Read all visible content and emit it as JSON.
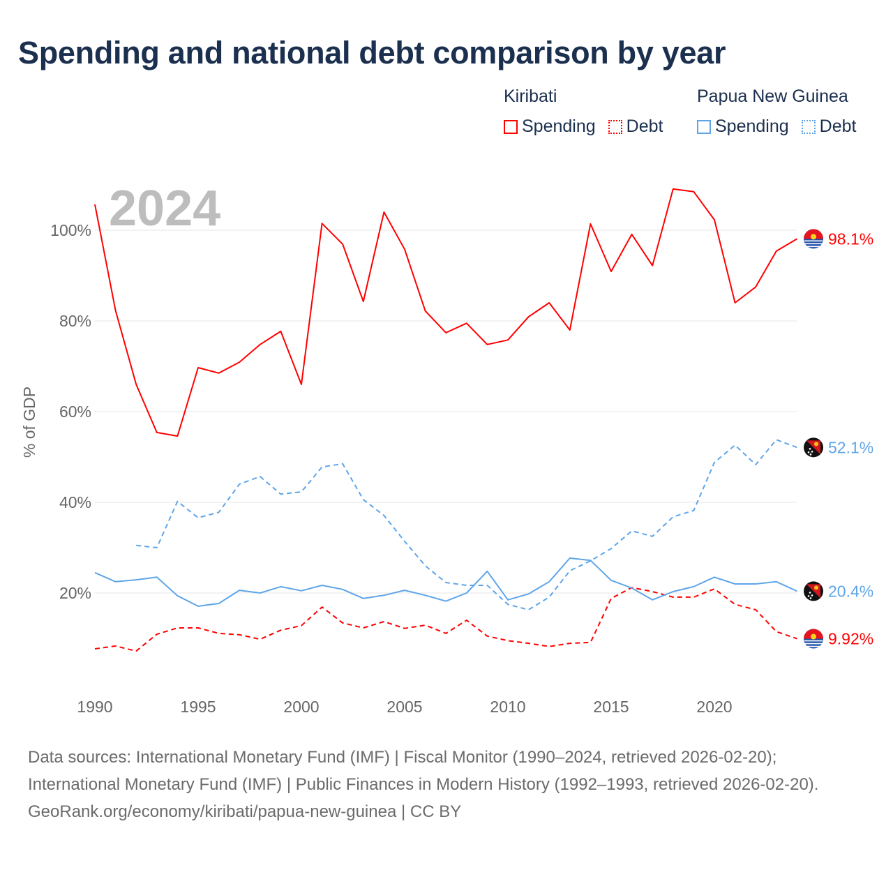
{
  "title": "Spending and national debt comparison by year",
  "year_watermark": "2024",
  "legend": {
    "groups": [
      {
        "country": "Kiribati",
        "items": [
          {
            "label": "Spending",
            "style": "solid"
          },
          {
            "label": "Debt",
            "style": "dotted"
          }
        ],
        "color": "#ff0000"
      },
      {
        "country": "Papua New Guinea",
        "items": [
          {
            "label": "Spending",
            "style": "solid"
          },
          {
            "label": "Debt",
            "style": "dotted"
          }
        ],
        "color": "#5ea5e8"
      }
    ]
  },
  "footer": {
    "sources": "Data sources: International Monetary Fund (IMF) | Fiscal Monitor (1990–2024, retrieved 2026-02-20); International Monetary Fund (IMF) | Public Finances in Modern History (1992–1993, retrieved 2026-02-20).",
    "credit": "GeoRank.org/economy/kiribati/papua-new-guinea | CC BY"
  },
  "chart_data": {
    "type": "line",
    "title": "Spending and national debt comparison by year",
    "xlabel": "",
    "ylabel": "% of GDP",
    "xlim": [
      1990,
      2024
    ],
    "ylim": [
      0,
      110
    ],
    "x_ticks": [
      1990,
      1995,
      2000,
      2005,
      2010,
      2015,
      2020
    ],
    "x_tick_labels": [
      "1990",
      "1995",
      "2000",
      "2005",
      "2010",
      "2015",
      "2020"
    ],
    "y_ticks": [
      20,
      40,
      60,
      80,
      100
    ],
    "y_tick_labels": [
      "20%",
      "40%",
      "60%",
      "80%",
      "100%"
    ],
    "grid": true,
    "legend_position": "top-right",
    "series": [
      {
        "name": "Kiribati Spending",
        "country": "Kiribati",
        "color": "#ff0000",
        "dash": "solid",
        "end_label": "98.1%",
        "start_year": 1990,
        "values": [
          105.7,
          82.3,
          66,
          55.4,
          54.6,
          69.7,
          68.5,
          70.9,
          74.8,
          77.7,
          66,
          101.5,
          96.9,
          84.3,
          104,
          95.8,
          82.2,
          77.4,
          79.5,
          74.8,
          75.8,
          80.9,
          84,
          78,
          101.4,
          90.9,
          99.1,
          92.2,
          109.1,
          108.5,
          102.3,
          84,
          87.5,
          95.4,
          98.1
        ]
      },
      {
        "name": "Kiribati Debt",
        "country": "Kiribati",
        "color": "#ff0000",
        "dash": "dashed",
        "end_label": "9.92%",
        "start_year": 1990,
        "values": [
          7.7,
          8.3,
          7.2,
          10.9,
          12.3,
          12.3,
          11.1,
          10.8,
          9.8,
          11.8,
          12.8,
          16.9,
          13.4,
          12.3,
          13.7,
          12.2,
          12.9,
          11.1,
          14,
          10.5,
          9.5,
          8.9,
          8.2,
          8.9,
          9.1,
          18.8,
          21.2,
          20.3,
          19.1,
          19.1,
          20.9,
          17.5,
          16.3,
          11.5,
          9.92
        ]
      },
      {
        "name": "Papua New Guinea Spending",
        "country": "Papua New Guinea",
        "color": "#5ea5e8",
        "dash": "solid",
        "end_label": "20.4%",
        "start_year": 1990,
        "values": [
          24.5,
          22.5,
          22.9,
          23.5,
          19.4,
          17.1,
          17.7,
          20.6,
          20,
          21.4,
          20.5,
          21.7,
          20.8,
          18.8,
          19.5,
          20.6,
          19.5,
          18.2,
          20,
          24.8,
          18.5,
          19.8,
          22.5,
          27.7,
          27.2,
          22.8,
          21.1,
          18.5,
          20.3,
          21.4,
          23.5,
          22,
          22,
          22.5,
          20.4
        ]
      },
      {
        "name": "Papua New Guinea Debt",
        "country": "Papua New Guinea",
        "color": "#5ea5e8",
        "dash": "dashed",
        "end_label": "52.1%",
        "start_year": 1992,
        "values": [
          30.5,
          30,
          40.2,
          36.6,
          37.8,
          44,
          45.7,
          41.8,
          42.3,
          47.8,
          48.5,
          40.6,
          37.1,
          31.4,
          26,
          22.3,
          21.7,
          21.7,
          17.5,
          16.3,
          19.1,
          24.9,
          27.1,
          29.8,
          33.7,
          32.5,
          36.8,
          38.2,
          48.8,
          52.6,
          48.3,
          53.8,
          52.1
        ]
      }
    ]
  }
}
